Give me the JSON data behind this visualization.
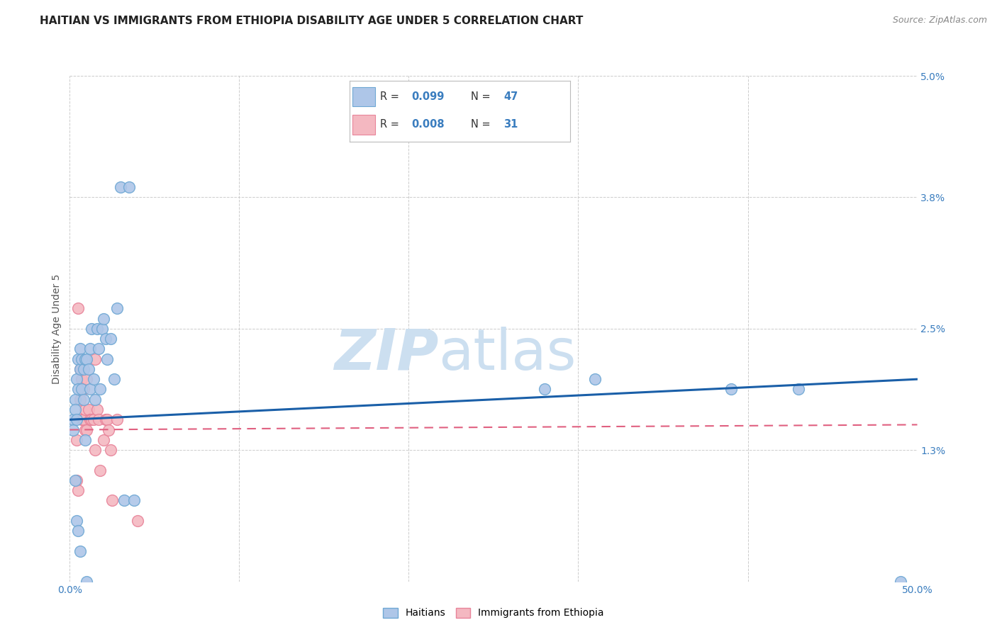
{
  "title": "HAITIAN VS IMMIGRANTS FROM ETHIOPIA DISABILITY AGE UNDER 5 CORRELATION CHART",
  "source": "Source: ZipAtlas.com",
  "ylabel": "Disability Age Under 5",
  "xlim": [
    0.0,
    0.5
  ],
  "ylim": [
    0.0,
    0.05
  ],
  "xtick_positions": [
    0.0,
    0.1,
    0.2,
    0.3,
    0.4,
    0.5
  ],
  "xticklabels": [
    "0.0%",
    "",
    "",
    "",
    "",
    "50.0%"
  ],
  "ytick_positions": [
    0.0,
    0.013,
    0.025,
    0.038,
    0.05
  ],
  "yticklabels": [
    "",
    "1.3%",
    "2.5%",
    "3.8%",
    "5.0%"
  ],
  "haitian_x": [
    0.002,
    0.002,
    0.003,
    0.003,
    0.003,
    0.004,
    0.004,
    0.004,
    0.005,
    0.005,
    0.005,
    0.006,
    0.006,
    0.006,
    0.007,
    0.007,
    0.008,
    0.008,
    0.009,
    0.009,
    0.01,
    0.01,
    0.011,
    0.012,
    0.012,
    0.013,
    0.014,
    0.015,
    0.016,
    0.017,
    0.018,
    0.019,
    0.02,
    0.021,
    0.022,
    0.024,
    0.026,
    0.028,
    0.03,
    0.032,
    0.035,
    0.038,
    0.28,
    0.31,
    0.39,
    0.43,
    0.49
  ],
  "haitian_y": [
    0.016,
    0.015,
    0.018,
    0.017,
    0.01,
    0.02,
    0.016,
    0.006,
    0.022,
    0.019,
    0.005,
    0.023,
    0.021,
    0.003,
    0.022,
    0.019,
    0.021,
    0.018,
    0.022,
    0.014,
    0.022,
    0.0,
    0.021,
    0.023,
    0.019,
    0.025,
    0.02,
    0.018,
    0.025,
    0.023,
    0.019,
    0.025,
    0.026,
    0.024,
    0.022,
    0.024,
    0.02,
    0.027,
    0.039,
    0.008,
    0.039,
    0.008,
    0.019,
    0.02,
    0.019,
    0.019,
    0.0
  ],
  "ethiopia_x": [
    0.004,
    0.004,
    0.005,
    0.005,
    0.006,
    0.006,
    0.007,
    0.007,
    0.008,
    0.008,
    0.009,
    0.009,
    0.01,
    0.01,
    0.011,
    0.012,
    0.013,
    0.014,
    0.015,
    0.015,
    0.016,
    0.017,
    0.018,
    0.02,
    0.021,
    0.022,
    0.023,
    0.024,
    0.025,
    0.028,
    0.04
  ],
  "ethiopia_y": [
    0.014,
    0.01,
    0.027,
    0.009,
    0.021,
    0.018,
    0.02,
    0.016,
    0.019,
    0.016,
    0.017,
    0.015,
    0.02,
    0.015,
    0.017,
    0.016,
    0.016,
    0.016,
    0.022,
    0.013,
    0.017,
    0.016,
    0.011,
    0.014,
    0.016,
    0.016,
    0.015,
    0.013,
    0.008,
    0.016,
    0.006
  ],
  "haitian_trendline": [
    0.016,
    0.02
  ],
  "ethiopia_trendline": [
    0.015,
    0.0155
  ],
  "haitian_color": "#aec6e8",
  "haitian_edge_color": "#6fa8d4",
  "ethiopia_color": "#f4b8c1",
  "ethiopia_edge_color": "#e8849a",
  "trendline_haitian_color": "#1a5fa8",
  "trendline_ethiopia_color": "#e06080",
  "watermark_zip": "ZIP",
  "watermark_atlas": "atlas",
  "watermark_color": "#ccdff0",
  "background_color": "#ffffff",
  "grid_color": "#cccccc",
  "title_color": "#222222",
  "source_color": "#888888",
  "tick_color": "#3a7dbf",
  "ylabel_color": "#555555",
  "title_fontsize": 11,
  "axis_label_fontsize": 10,
  "tick_fontsize": 10,
  "legend_fontsize": 11
}
